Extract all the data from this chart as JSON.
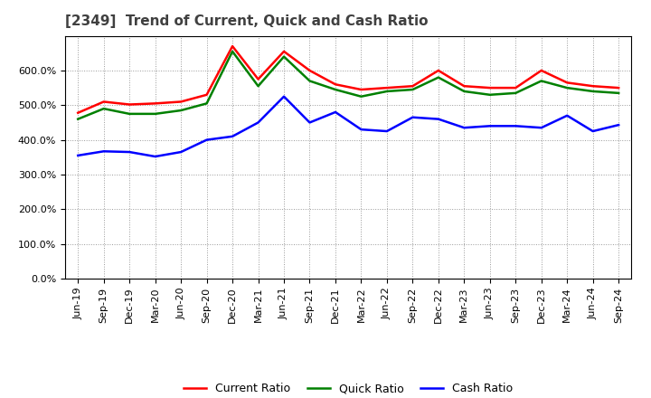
{
  "title": "[2349]  Trend of Current, Quick and Cash Ratio",
  "labels": [
    "Jun-19",
    "Sep-19",
    "Dec-19",
    "Mar-20",
    "Jun-20",
    "Sep-20",
    "Dec-20",
    "Mar-21",
    "Jun-21",
    "Sep-21",
    "Dec-21",
    "Mar-22",
    "Jun-22",
    "Sep-22",
    "Dec-22",
    "Mar-23",
    "Jun-23",
    "Sep-23",
    "Dec-23",
    "Mar-24",
    "Jun-24",
    "Sep-24"
  ],
  "current_ratio": [
    478,
    510,
    502,
    505,
    510,
    530,
    670,
    575,
    655,
    600,
    560,
    545,
    550,
    555,
    600,
    555,
    550,
    550,
    600,
    565,
    555,
    550
  ],
  "quick_ratio": [
    460,
    490,
    475,
    475,
    485,
    505,
    655,
    555,
    640,
    570,
    545,
    525,
    540,
    545,
    580,
    540,
    530,
    535,
    570,
    550,
    540,
    535
  ],
  "cash_ratio": [
    355,
    367,
    365,
    352,
    365,
    400,
    410,
    450,
    525,
    450,
    480,
    430,
    425,
    465,
    460,
    435,
    440,
    440,
    435,
    470,
    425,
    443
  ],
  "current_color": "#FF0000",
  "quick_color": "#008000",
  "cash_color": "#0000FF",
  "ylim": [
    0,
    700
  ],
  "yticks": [
    0,
    100,
    200,
    300,
    400,
    500,
    600
  ],
  "background_color": "#FFFFFF",
  "grid_color": "#AAAAAA",
  "title_color": "#404040",
  "title_fontsize": 11,
  "tick_fontsize": 8,
  "legend_fontsize": 9,
  "linewidth": 1.8
}
